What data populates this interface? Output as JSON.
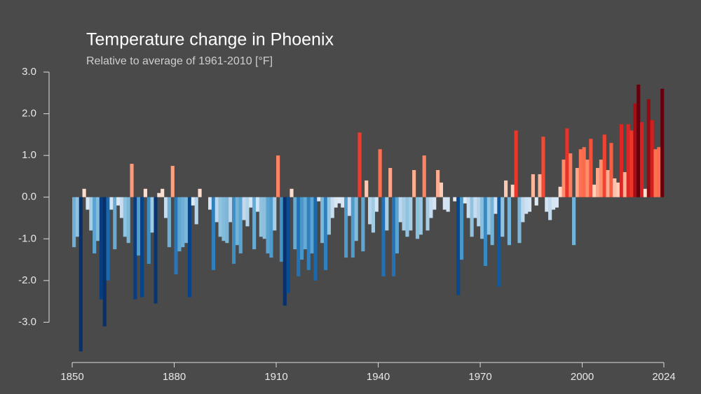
{
  "chart_data": {
    "type": "bar",
    "title": "Temperature change in Phoenix",
    "subtitle": "Relative to average of 1961-2010  [°F]",
    "x": [
      1850,
      1851,
      1852,
      1853,
      1854,
      1855,
      1856,
      1857,
      1858,
      1859,
      1860,
      1861,
      1862,
      1863,
      1864,
      1865,
      1866,
      1867,
      1868,
      1869,
      1870,
      1871,
      1872,
      1873,
      1874,
      1875,
      1876,
      1877,
      1878,
      1879,
      1880,
      1881,
      1882,
      1883,
      1884,
      1885,
      1886,
      1887,
      1888,
      1889,
      1890,
      1891,
      1892,
      1893,
      1894,
      1895,
      1896,
      1897,
      1898,
      1899,
      1900,
      1901,
      1902,
      1903,
      1904,
      1905,
      1906,
      1907,
      1908,
      1909,
      1910,
      1911,
      1912,
      1913,
      1914,
      1915,
      1916,
      1917,
      1918,
      1919,
      1920,
      1921,
      1922,
      1923,
      1924,
      1925,
      1926,
      1927,
      1928,
      1929,
      1930,
      1931,
      1932,
      1933,
      1934,
      1935,
      1936,
      1937,
      1938,
      1939,
      1940,
      1941,
      1942,
      1943,
      1944,
      1945,
      1946,
      1947,
      1948,
      1949,
      1950,
      1951,
      1952,
      1953,
      1954,
      1955,
      1956,
      1957,
      1958,
      1959,
      1960,
      1961,
      1962,
      1963,
      1964,
      1965,
      1966,
      1967,
      1968,
      1969,
      1970,
      1971,
      1972,
      1973,
      1974,
      1975,
      1976,
      1977,
      1978,
      1979,
      1980,
      1981,
      1982,
      1983,
      1984,
      1985,
      1986,
      1987,
      1988,
      1989,
      1990,
      1991,
      1992,
      1993,
      1994,
      1995,
      1996,
      1997,
      1998,
      1999,
      2000,
      2001,
      2002,
      2003,
      2004,
      2005,
      2006,
      2007,
      2008,
      2009,
      2010,
      2011,
      2012,
      2013,
      2014,
      2015,
      2016,
      2017,
      2018,
      2019,
      2020,
      2021,
      2022,
      2023
    ],
    "values": [
      -1.2,
      -0.95,
      -3.7,
      0.2,
      -0.3,
      -0.8,
      -1.35,
      -1.05,
      -2.45,
      -3.1,
      -2.0,
      -0.3,
      -1.25,
      -0.2,
      -0.5,
      -0.95,
      -1.1,
      0.8,
      -2.45,
      -1.4,
      -2.4,
      0.2,
      -1.6,
      -0.85,
      -2.55,
      0.1,
      0.2,
      -0.5,
      -1.2,
      0.75,
      -1.85,
      -1.3,
      -1.2,
      -1.1,
      -2.4,
      -0.2,
      -0.65,
      0.2,
      0.0,
      0.0,
      -0.3,
      -1.75,
      -0.6,
      -0.95,
      -1.05,
      -1.1,
      -0.6,
      -1.6,
      -1.15,
      -1.35,
      -0.55,
      -0.7,
      -0.25,
      -1.25,
      -0.35,
      -0.95,
      -1.0,
      -1.35,
      -1.45,
      -0.8,
      1.0,
      -1.55,
      -2.6,
      -2.3,
      0.2,
      -1.25,
      -1.9,
      -1.5,
      -1.25,
      -1.75,
      -1.35,
      -2.0,
      -0.1,
      -1.1,
      -1.75,
      -0.9,
      -0.5,
      -0.25,
      -0.15,
      -0.25,
      -1.45,
      -0.45,
      -1.45,
      -1.05,
      1.55,
      -1.3,
      0.4,
      -0.65,
      -0.85,
      -0.35,
      1.15,
      -1.9,
      -0.8,
      0.7,
      -1.9,
      -1.35,
      -0.6,
      -0.8,
      -0.95,
      -0.8,
      0.65,
      -1.0,
      -0.9,
      1.0,
      -0.8,
      -0.5,
      -0.3,
      0.65,
      0.35,
      -0.3,
      -0.35,
      0.0,
      -0.1,
      -2.35,
      -1.5,
      -0.15,
      -0.5,
      -0.95,
      -0.5,
      -0.7,
      -1.0,
      -1.65,
      -0.9,
      -1.15,
      -0.4,
      -2.15,
      -0.95,
      0.4,
      -1.15,
      0.3,
      1.6,
      -1.1,
      -0.6,
      -0.4,
      -0.35,
      0.55,
      -0.2,
      0.55,
      1.45,
      -0.35,
      -0.55,
      -0.3,
      -0.25,
      0.25,
      0.9,
      1.65,
      1.05,
      -1.15,
      0.7,
      1.15,
      1.2,
      0.9,
      1.4,
      0.3,
      0.7,
      0.9,
      1.5,
      0.65,
      1.3,
      0.45,
      0.35,
      1.75,
      0.6,
      1.75,
      1.6,
      2.25,
      2.7,
      1.8,
      0.2,
      2.35,
      1.85,
      1.15,
      1.2,
      2.6
    ],
    "colormap": {
      "colors": [
        "#08306b",
        "#08519c",
        "#2171b5",
        "#4292c6",
        "#6baed6",
        "#9ecae1",
        "#c6dbef",
        "#deebf7",
        "#fee0d2",
        "#fcbba1",
        "#fc9272",
        "#fb6a4a",
        "#ef3b2c",
        "#cb181d",
        "#a50f15",
        "#67000d"
      ],
      "domain": [
        -2.6,
        2.6
      ]
    },
    "xlim": [
      1850,
      2024
    ],
    "xticks": [
      1850,
      1880,
      1910,
      1940,
      1970,
      2000,
      2024
    ],
    "ylim": [
      -4,
      3
    ],
    "yticks": [
      {
        "value": -3,
        "label": "-3.0"
      },
      {
        "value": -2,
        "label": "-2.0"
      },
      {
        "value": -1,
        "label": "-1.0"
      },
      {
        "value": 0,
        "label": "0.0"
      },
      {
        "value": 1,
        "label": "1.0"
      },
      {
        "value": 2,
        "label": "2.0"
      },
      {
        "value": 3,
        "label": "3.0"
      }
    ],
    "grid": false
  }
}
